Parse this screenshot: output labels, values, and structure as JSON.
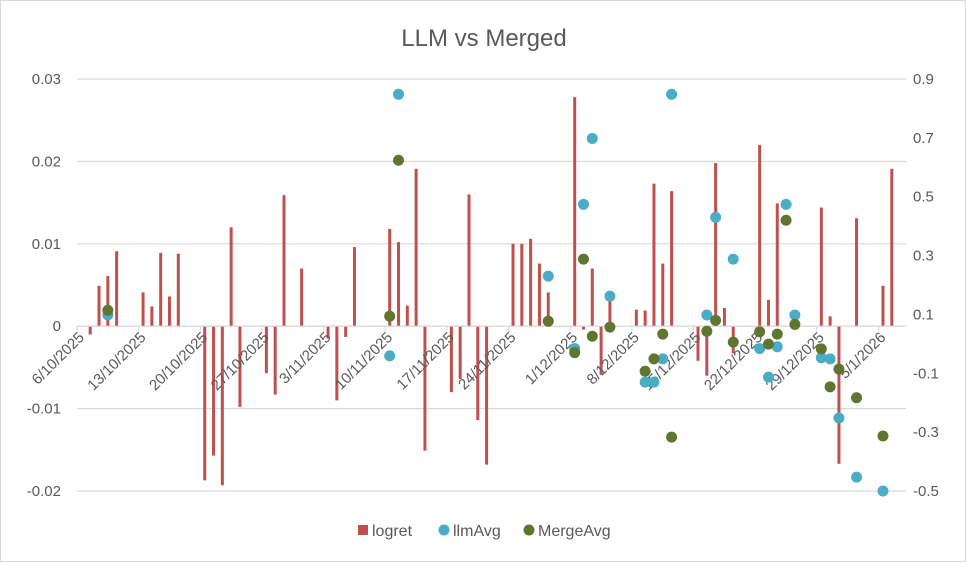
{
  "chart_data": {
    "type": "bar+scatter",
    "title": "LLM vs Merged",
    "x_axis": {
      "type": "date",
      "range": [
        "2025-10-06",
        "2026-01-07"
      ],
      "tick_labels": [
        "6/10/2025",
        "13/10/2025",
        "20/10/2025",
        "27/10/2025",
        "3/11/2025",
        "10/11/2025",
        "17/11/2025",
        "24/11/2025",
        "1/12/2025",
        "8/12/2025",
        "15/12/2025",
        "22/12/2025",
        "29/12/2025",
        "5/1/2026"
      ]
    },
    "y_left": {
      "range": [
        -0.02,
        0.03
      ],
      "tick_labels": [
        "0.03",
        "0.02",
        "0.01",
        "0",
        "-0.01",
        "-0.02"
      ],
      "ticks": [
        0.03,
        0.02,
        0.01,
        0,
        -0.01,
        -0.02
      ]
    },
    "y_right": {
      "range": [
        -0.5,
        0.9
      ],
      "tick_labels": [
        "0.9",
        "0.7",
        "0.5",
        "0.3",
        "0.1",
        "-0.1",
        "-0.3",
        "-0.5"
      ],
      "ticks": [
        0.9,
        0.7,
        0.5,
        0.3,
        0.1,
        -0.1,
        -0.3,
        -0.5
      ]
    },
    "grid": true,
    "legend_position": "bottom",
    "series": [
      {
        "name": "logret",
        "kind": "bar",
        "axis": "left",
        "color": "#C0504D",
        "points": [
          [
            "2025-10-07",
            -0.001
          ],
          [
            "2025-10-08",
            0.0049
          ],
          [
            "2025-10-09",
            0.0061
          ],
          [
            "2025-10-10",
            0.0091
          ],
          [
            "2025-10-13",
            0.0041
          ],
          [
            "2025-10-14",
            0.0024
          ],
          [
            "2025-10-15",
            0.0089
          ],
          [
            "2025-10-16",
            0.0036
          ],
          [
            "2025-10-17",
            0.0088
          ],
          [
            "2025-10-20",
            -0.0187
          ],
          [
            "2025-10-21",
            -0.0157
          ],
          [
            "2025-10-22",
            -0.0193
          ],
          [
            "2025-10-23",
            0.012
          ],
          [
            "2025-10-24",
            -0.0098
          ],
          [
            "2025-10-27",
            -0.0057
          ],
          [
            "2025-10-28",
            -0.0083
          ],
          [
            "2025-10-29",
            0.0159
          ],
          [
            "2025-10-31",
            0.007
          ],
          [
            "2025-11-03",
            -0.0015
          ],
          [
            "2025-11-04",
            -0.009
          ],
          [
            "2025-11-05",
            -0.0013
          ],
          [
            "2025-11-06",
            0.0096
          ],
          [
            "2025-11-10",
            0.0118
          ],
          [
            "2025-11-11",
            0.0102
          ],
          [
            "2025-11-12",
            0.0025
          ],
          [
            "2025-11-13",
            0.0191
          ],
          [
            "2025-11-14",
            -0.0151
          ],
          [
            "2025-11-17",
            -0.008
          ],
          [
            "2025-11-18",
            -0.0064
          ],
          [
            "2025-11-19",
            0.016
          ],
          [
            "2025-11-20",
            -0.0114
          ],
          [
            "2025-11-21",
            -0.0168
          ],
          [
            "2025-11-24",
            0.01
          ],
          [
            "2025-11-25",
            0.01
          ],
          [
            "2025-11-26",
            0.0106
          ],
          [
            "2025-11-27",
            0.0076
          ],
          [
            "2025-11-28",
            0.0041
          ],
          [
            "2025-12-01",
            0.0278
          ],
          [
            "2025-12-02",
            -0.0004
          ],
          [
            "2025-12-03",
            0.007
          ],
          [
            "2025-12-04",
            -0.0059
          ],
          [
            "2025-12-05",
            0.0031
          ],
          [
            "2025-12-08",
            0.002
          ],
          [
            "2025-12-09",
            0.0019
          ],
          [
            "2025-12-10",
            0.0173
          ],
          [
            "2025-12-11",
            0.0076
          ],
          [
            "2025-12-12",
            0.0164
          ],
          [
            "2025-12-15",
            -0.0042
          ],
          [
            "2025-12-16",
            -0.006
          ],
          [
            "2025-12-17",
            0.0198
          ],
          [
            "2025-12-18",
            0.0022
          ],
          [
            "2025-12-19",
            -0.0033
          ],
          [
            "2025-12-22",
            0.022
          ],
          [
            "2025-12-23",
            0.0032
          ],
          [
            "2025-12-24",
            0.0149
          ],
          [
            "2025-12-29",
            0.0144
          ],
          [
            "2025-12-30",
            0.0012
          ],
          [
            "2025-12-31",
            -0.0167
          ],
          [
            "2026-01-02",
            0.0131
          ],
          [
            "2026-01-05",
            0.0049
          ],
          [
            "2026-01-06",
            0.0191
          ]
        ]
      },
      {
        "name": "llmAvg",
        "kind": "scatter",
        "axis": "right",
        "color": "#4BACC6",
        "points": [
          [
            "2025-10-09",
            0.098
          ],
          [
            "2025-11-10",
            -0.041
          ],
          [
            "2025-11-11",
            0.848
          ],
          [
            "2025-11-28",
            0.23
          ],
          [
            "2025-12-01",
            -0.016
          ],
          [
            "2025-12-02",
            0.474
          ],
          [
            "2025-12-03",
            0.698
          ],
          [
            "2025-12-05",
            0.162
          ],
          [
            "2025-12-09",
            -0.13
          ],
          [
            "2025-12-10",
            -0.13
          ],
          [
            "2025-12-11",
            -0.051
          ],
          [
            "2025-12-12",
            0.848
          ],
          [
            "2025-12-16",
            0.098
          ],
          [
            "2025-12-17",
            0.43
          ],
          [
            "2025-12-19",
            0.288
          ],
          [
            "2025-12-22",
            -0.016
          ],
          [
            "2025-12-23",
            -0.113
          ],
          [
            "2025-12-24",
            -0.01
          ],
          [
            "2025-12-25",
            0.474
          ],
          [
            "2025-12-26",
            0.098
          ],
          [
            "2025-12-29",
            -0.047
          ],
          [
            "2025-12-30",
            -0.051
          ],
          [
            "2025-12-31",
            -0.252
          ],
          [
            "2026-01-02",
            -0.453
          ],
          [
            "2026-01-05",
            -0.5
          ]
        ]
      },
      {
        "name": "MergeAvg",
        "kind": "scatter",
        "axis": "right",
        "color": "#5F7530",
        "points": [
          [
            "2025-10-09",
            0.114
          ],
          [
            "2025-11-10",
            0.094
          ],
          [
            "2025-11-11",
            0.624
          ],
          [
            "2025-11-28",
            0.077
          ],
          [
            "2025-12-01",
            -0.03
          ],
          [
            "2025-12-02",
            0.288
          ],
          [
            "2025-12-03",
            0.026
          ],
          [
            "2025-12-05",
            0.057
          ],
          [
            "2025-12-09",
            -0.093
          ],
          [
            "2025-12-10",
            -0.051
          ],
          [
            "2025-12-11",
            0.033
          ],
          [
            "2025-12-12",
            -0.317
          ],
          [
            "2025-12-16",
            0.043
          ],
          [
            "2025-12-17",
            0.08
          ],
          [
            "2025-12-19",
            0.006
          ],
          [
            "2025-12-22",
            0.041
          ],
          [
            "2025-12-23",
            -0.001
          ],
          [
            "2025-12-24",
            0.033
          ],
          [
            "2025-12-25",
            0.42
          ],
          [
            "2025-12-26",
            0.066
          ],
          [
            "2025-12-29",
            -0.017
          ],
          [
            "2025-12-30",
            -0.146
          ],
          [
            "2025-12-31",
            -0.086
          ],
          [
            "2026-01-02",
            -0.183
          ],
          [
            "2026-01-05",
            -0.313
          ]
        ]
      }
    ]
  }
}
